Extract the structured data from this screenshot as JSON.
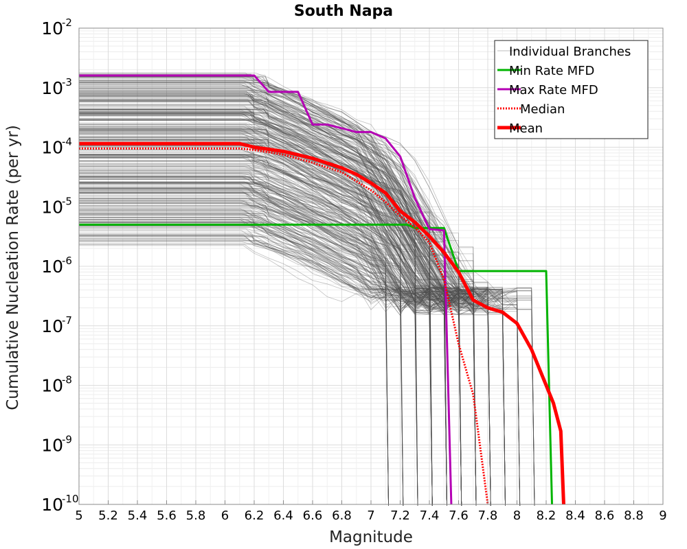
{
  "chart_data": {
    "type": "line",
    "title": "South Napa",
    "xlabel": "Magnitude",
    "ylabel": "Cumulative Nucleation Rate (per yr)",
    "x_scale": "linear",
    "y_scale": "log",
    "xlim": [
      5,
      9
    ],
    "ylim": [
      1e-10,
      0.01
    ],
    "x_ticks": [
      "5",
      "5.2",
      "5.4",
      "5.6",
      "5.8",
      "6",
      "6.2",
      "6.4",
      "6.6",
      "6.8",
      "7",
      "7.2",
      "7.4",
      "7.6",
      "7.8",
      "8",
      "8.2",
      "8.4",
      "8.6",
      "8.8",
      "9"
    ],
    "y_ticks": [
      {
        "value": 1e-10,
        "base": "10",
        "exp": "-10"
      },
      {
        "value": 1e-09,
        "base": "10",
        "exp": "-9"
      },
      {
        "value": 1e-08,
        "base": "10",
        "exp": "-8"
      },
      {
        "value": 1e-07,
        "base": "10",
        "exp": "-7"
      },
      {
        "value": 1e-06,
        "base": "10",
        "exp": "-6"
      },
      {
        "value": 1e-05,
        "base": "10",
        "exp": "-5"
      },
      {
        "value": 0.0001,
        "base": "10",
        "exp": "-4"
      },
      {
        "value": 0.001,
        "base": "10",
        "exp": "-3"
      },
      {
        "value": 0.01,
        "base": "10",
        "exp": "-2"
      }
    ],
    "grid": true,
    "legend_position": "top-right",
    "legend": [
      {
        "label": "Individual Branches",
        "color": "#bbbbbb",
        "style": "thin"
      },
      {
        "label": "Min Rate MFD",
        "color": "#00b400",
        "style": "solid"
      },
      {
        "label": "Max Rate MFD",
        "color": "#b400b4",
        "style": "solid"
      },
      {
        "label": "Median",
        "color": "#ff0000",
        "style": "dotted"
      },
      {
        "label": "Mean",
        "color": "#ff0000",
        "style": "thick"
      }
    ],
    "series": [
      {
        "name": "Min Rate MFD",
        "color": "#00b400",
        "x": [
          5.0,
          7.2,
          7.25,
          7.3,
          7.5,
          7.6,
          8.2,
          8.24
        ],
        "y": [
          5e-06,
          5e-06,
          5e-06,
          4.4e-06,
          4.4e-06,
          8.3e-07,
          8.3e-07,
          1e-10
        ]
      },
      {
        "name": "Max Rate MFD",
        "color": "#b400b4",
        "x": [
          5.0,
          6.2,
          6.3,
          6.5,
          6.6,
          6.7,
          6.9,
          7.0,
          7.1,
          7.2,
          7.3,
          7.4,
          7.5,
          7.55
        ],
        "y": [
          0.0016,
          0.0016,
          0.00085,
          0.00085,
          0.00024,
          0.00024,
          0.00018,
          0.00018,
          0.00014,
          7e-05,
          1.4e-05,
          4.2e-06,
          4e-06,
          1e-10
        ]
      },
      {
        "name": "Median",
        "color": "#ff0000",
        "x": [
          5.0,
          6.1,
          6.2,
          6.4,
          6.6,
          6.8,
          7.0,
          7.1,
          7.2,
          7.3,
          7.4,
          7.5,
          7.6,
          7.7,
          7.8
        ],
        "y": [
          9.5e-05,
          9.5e-05,
          9e-05,
          7.5e-05,
          5.5e-05,
          3.8e-05,
          1.9e-05,
          1.2e-05,
          7e-06,
          4.5e-06,
          2.5e-06,
          6e-07,
          5e-08,
          7e-09,
          1e-10
        ]
      },
      {
        "name": "Mean",
        "color": "#ff0000",
        "x": [
          5.0,
          6.1,
          6.2,
          6.4,
          6.6,
          6.8,
          6.9,
          7.0,
          7.1,
          7.2,
          7.3,
          7.4,
          7.5,
          7.6,
          7.7,
          7.8,
          7.9,
          8.0,
          8.1,
          8.2,
          8.25,
          8.3,
          8.32
        ],
        "y": [
          0.000115,
          0.000115,
          0.0001,
          8.5e-05,
          6.5e-05,
          4.5e-05,
          3.5e-05,
          2.5e-05,
          1.7e-05,
          8.5e-06,
          5.5e-06,
          3.2e-06,
          1.7e-06,
          8e-07,
          2.7e-07,
          2e-07,
          1.7e-07,
          1.1e-07,
          4e-08,
          1e-08,
          5e-09,
          1.7e-09,
          1e-10
        ]
      }
    ],
    "branch_bundle": {
      "label": "Individual Branches",
      "color": "#4d4d4d",
      "count": 420,
      "plateau_range": [
        2e-06,
        0.0018
      ],
      "drop_start_mag": [
        6.1,
        6.3
      ],
      "tail_mags": [
        7.1,
        7.2,
        7.3,
        7.4,
        7.5,
        7.6,
        7.7,
        7.8,
        7.9,
        8.0,
        8.1,
        8.2,
        8.3
      ]
    }
  }
}
